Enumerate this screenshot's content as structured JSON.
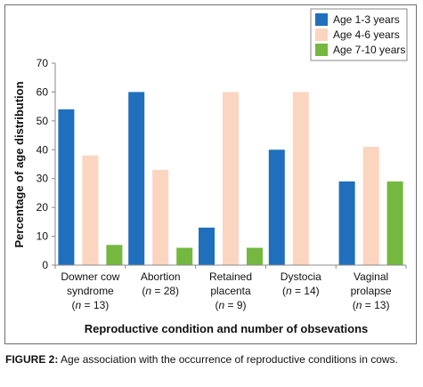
{
  "chart_data": {
    "type": "bar",
    "categories": [
      [
        "Downer cow",
        "syndrome",
        "(n = 13)"
      ],
      [
        "Abortion",
        "(n = 28)"
      ],
      [
        "Retained",
        "placenta",
        "(n = 9)"
      ],
      [
        "Dystocia",
        "(n = 14)"
      ],
      [
        "Vaginal",
        "prolapse",
        "(n = 13)"
      ]
    ],
    "series": [
      {
        "name": "Age 1-3 years",
        "color": "#1f6fbd",
        "values": [
          54,
          60,
          13,
          40,
          29
        ]
      },
      {
        "name": "Age 4-6 years",
        "color": "#fcd5c0",
        "values": [
          38,
          33,
          60,
          60,
          41
        ]
      },
      {
        "name": "Age 7-10 years",
        "color": "#74b83f",
        "values": [
          7,
          6,
          6,
          0,
          29
        ]
      }
    ],
    "yticks": [
      0,
      10,
      20,
      30,
      40,
      50,
      60,
      70
    ],
    "ylim": [
      0,
      70
    ],
    "xlabel": "Reproductive condition and number of obsevations",
    "ylabel": "Percentage of age distribution",
    "legend_position": "top-right",
    "grid": false
  },
  "caption": {
    "label": "FIGURE 2:",
    "text": " Age association with the occurrence of reproductive conditions in cows."
  }
}
